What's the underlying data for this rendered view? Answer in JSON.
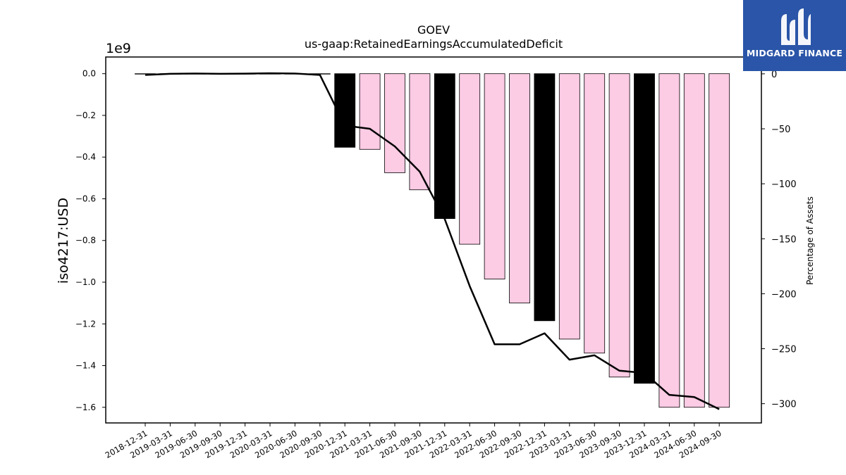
{
  "chart_data": {
    "type": "bar",
    "title": "GOEV",
    "subtitle": "us-gaap:RetainedEarningsAccumulatedDeficit",
    "ylabel": "iso4217:USD",
    "y_offset_label": "1e9",
    "y2label": "Percentage of Assets",
    "categories": [
      "2018-12-31",
      "2019-03-31",
      "2019-06-30",
      "2019-09-30",
      "2019-12-31",
      "2020-03-31",
      "2020-06-30",
      "2020-09-30",
      "2020-12-31",
      "2021-03-31",
      "2021-06-30",
      "2021-09-30",
      "2021-12-31",
      "2022-03-31",
      "2022-06-30",
      "2022-09-30",
      "2022-12-31",
      "2023-03-31",
      "2023-06-30",
      "2023-09-30",
      "2023-12-31",
      "2024-03-31",
      "2024-06-30",
      "2024-09-30"
    ],
    "series": [
      {
        "kind": "bar",
        "axis": "left",
        "values": [
          -0.0008,
          -0.001,
          -0.001,
          -0.001,
          -0.001,
          -0.001,
          -0.001,
          -0.001,
          -0.353,
          -0.363,
          -0.475,
          -0.557,
          -0.695,
          -0.818,
          -0.985,
          -1.1,
          -1.185,
          -1.273,
          -1.34,
          -1.455,
          -1.485,
          -1.6,
          -1.6,
          -1.6
        ],
        "colors": [
          "#ffffff",
          "#ffffff",
          "#ffffff",
          "#ffffff",
          "#ffffff",
          "#ffffff",
          "#ffffff",
          "#ffffff",
          "#000000",
          "#fccbe4",
          "#fccbe4",
          "#fccbe4",
          "#000000",
          "#fccbe4",
          "#fccbe4",
          "#fccbe4",
          "#000000",
          "#fccbe4",
          "#fccbe4",
          "#fccbe4",
          "#000000",
          "#fccbe4",
          "#fccbe4",
          "#fccbe4"
        ]
      },
      {
        "kind": "line",
        "axis": "right",
        "color": "#000000",
        "values": [
          -1,
          0,
          0.3,
          0,
          0.2,
          0.5,
          0.3,
          -1,
          -47,
          -50,
          -66,
          -89,
          -132,
          -193,
          -246,
          -246,
          -236,
          -260,
          -256,
          -270,
          -272,
          -292,
          -294,
          -305
        ]
      }
    ],
    "ylim": [
      -1.675,
      0.08
    ],
    "yticks": [
      "0.0",
      "−0.2",
      "−0.4",
      "−0.6",
      "−0.8",
      "−1.0",
      "−1.2",
      "−1.4",
      "−1.6"
    ],
    "y2lim": [
      -317.5,
      15.3
    ],
    "y2ticks": [
      "0",
      "−50",
      "−100",
      "−150",
      "−200",
      "−250",
      "−300"
    ]
  },
  "logo": {
    "text": "MIDGARD FINANCE",
    "color": "#2a55a8"
  }
}
